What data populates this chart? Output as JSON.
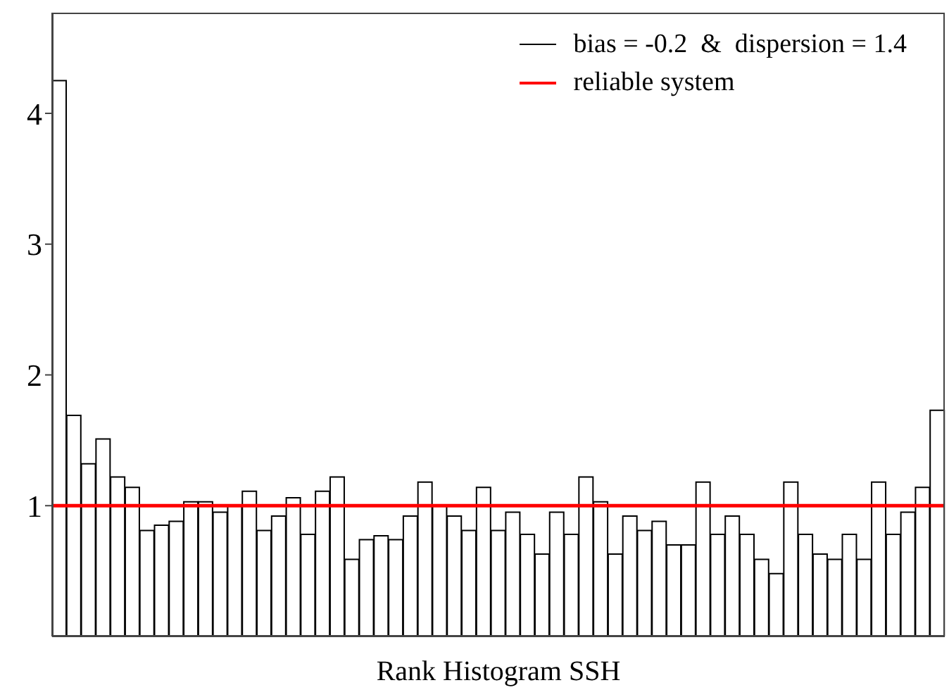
{
  "chart_data": {
    "type": "bar",
    "xlabel": "Rank Histogram SSH",
    "categories": [
      null,
      null,
      null,
      null,
      null,
      null,
      null,
      null,
      null,
      null,
      null,
      null,
      null,
      null,
      null,
      null,
      null,
      null,
      null,
      null,
      null,
      null,
      null,
      null,
      null,
      null,
      null,
      null,
      null,
      null,
      null,
      null,
      null,
      null,
      null,
      null,
      null,
      null,
      null,
      null,
      null,
      null,
      null,
      null,
      null,
      null,
      null,
      null,
      null,
      null,
      null,
      null,
      null,
      null,
      null,
      null,
      null,
      null,
      null,
      null,
      null
    ],
    "series": [
      {
        "name": "bias = -0.2  &  dispersion = 1.4",
        "color": "#000000",
        "values": [
          4.25,
          1.69,
          1.32,
          1.51,
          1.22,
          1.14,
          0.81,
          0.85,
          0.88,
          1.03,
          1.03,
          0.95,
          1.0,
          1.11,
          0.81,
          0.92,
          1.06,
          0.78,
          1.11,
          1.22,
          0.59,
          0.74,
          0.77,
          0.74,
          0.92,
          1.18,
          1.0,
          0.92,
          0.81,
          1.14,
          0.81,
          0.95,
          0.78,
          0.63,
          0.95,
          0.78,
          1.22,
          1.03,
          0.63,
          0.92,
          0.81,
          0.88,
          0.7,
          0.7,
          1.18,
          0.78,
          0.92,
          0.78,
          0.59,
          0.48,
          1.18,
          0.78,
          0.63,
          0.59,
          0.78,
          0.59,
          1.18,
          0.78,
          0.95,
          1.14,
          1.73
        ]
      }
    ],
    "ref_lines": [
      {
        "axis": "y",
        "value": 1,
        "label": "reliable system",
        "color": "#ff0000"
      }
    ],
    "ylim": [
      0,
      4.77
    ],
    "yticks": [
      1,
      2,
      3,
      4
    ],
    "legend": "top right"
  }
}
